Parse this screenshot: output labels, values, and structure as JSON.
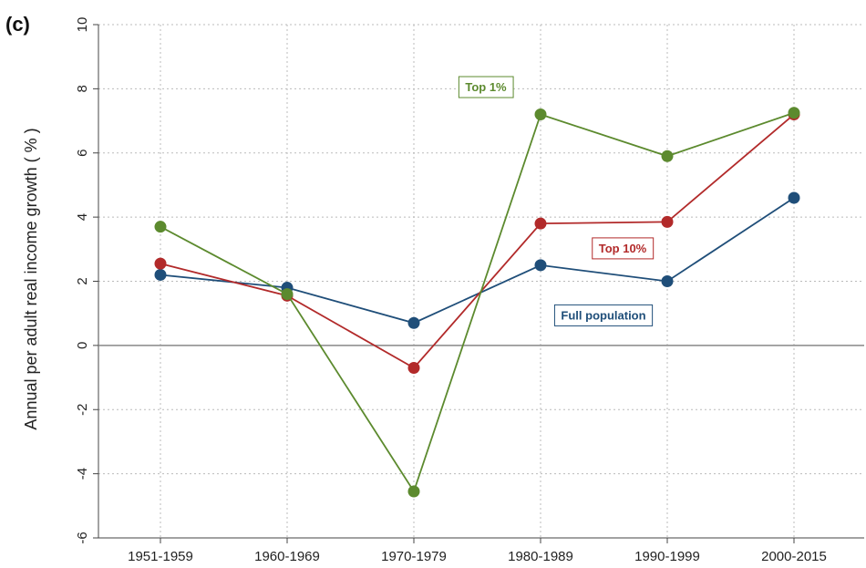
{
  "chart_data": {
    "type": "line",
    "panel_label": "(c)",
    "ylabel": "Annual per adult real income growth ( % )",
    "xlabel": "",
    "categories": [
      "1951-1959",
      "1960-1969",
      "1970-1979",
      "1980-1989",
      "1990-1999",
      "2000-2015"
    ],
    "ylim": [
      -6,
      10
    ],
    "yticks": [
      -6,
      -4,
      -2,
      0,
      2,
      4,
      6,
      8,
      10
    ],
    "ytick_labels": [
      "-6",
      "-4",
      "-2",
      "0",
      "2",
      "4",
      "6",
      "8",
      "10"
    ],
    "grid": true,
    "series": [
      {
        "name": "Full population",
        "color": "#1f4e79",
        "values": [
          2.2,
          1.8,
          0.7,
          2.5,
          2.0,
          4.6
        ]
      },
      {
        "name": "Top 10%",
        "color": "#b22a2a",
        "values": [
          2.55,
          1.55,
          -0.7,
          3.8,
          3.85,
          7.2
        ]
      },
      {
        "name": "Top 1%",
        "color": "#5c8a2e",
        "values": [
          3.7,
          1.6,
          -4.55,
          7.2,
          5.9,
          7.25
        ]
      }
    ]
  }
}
